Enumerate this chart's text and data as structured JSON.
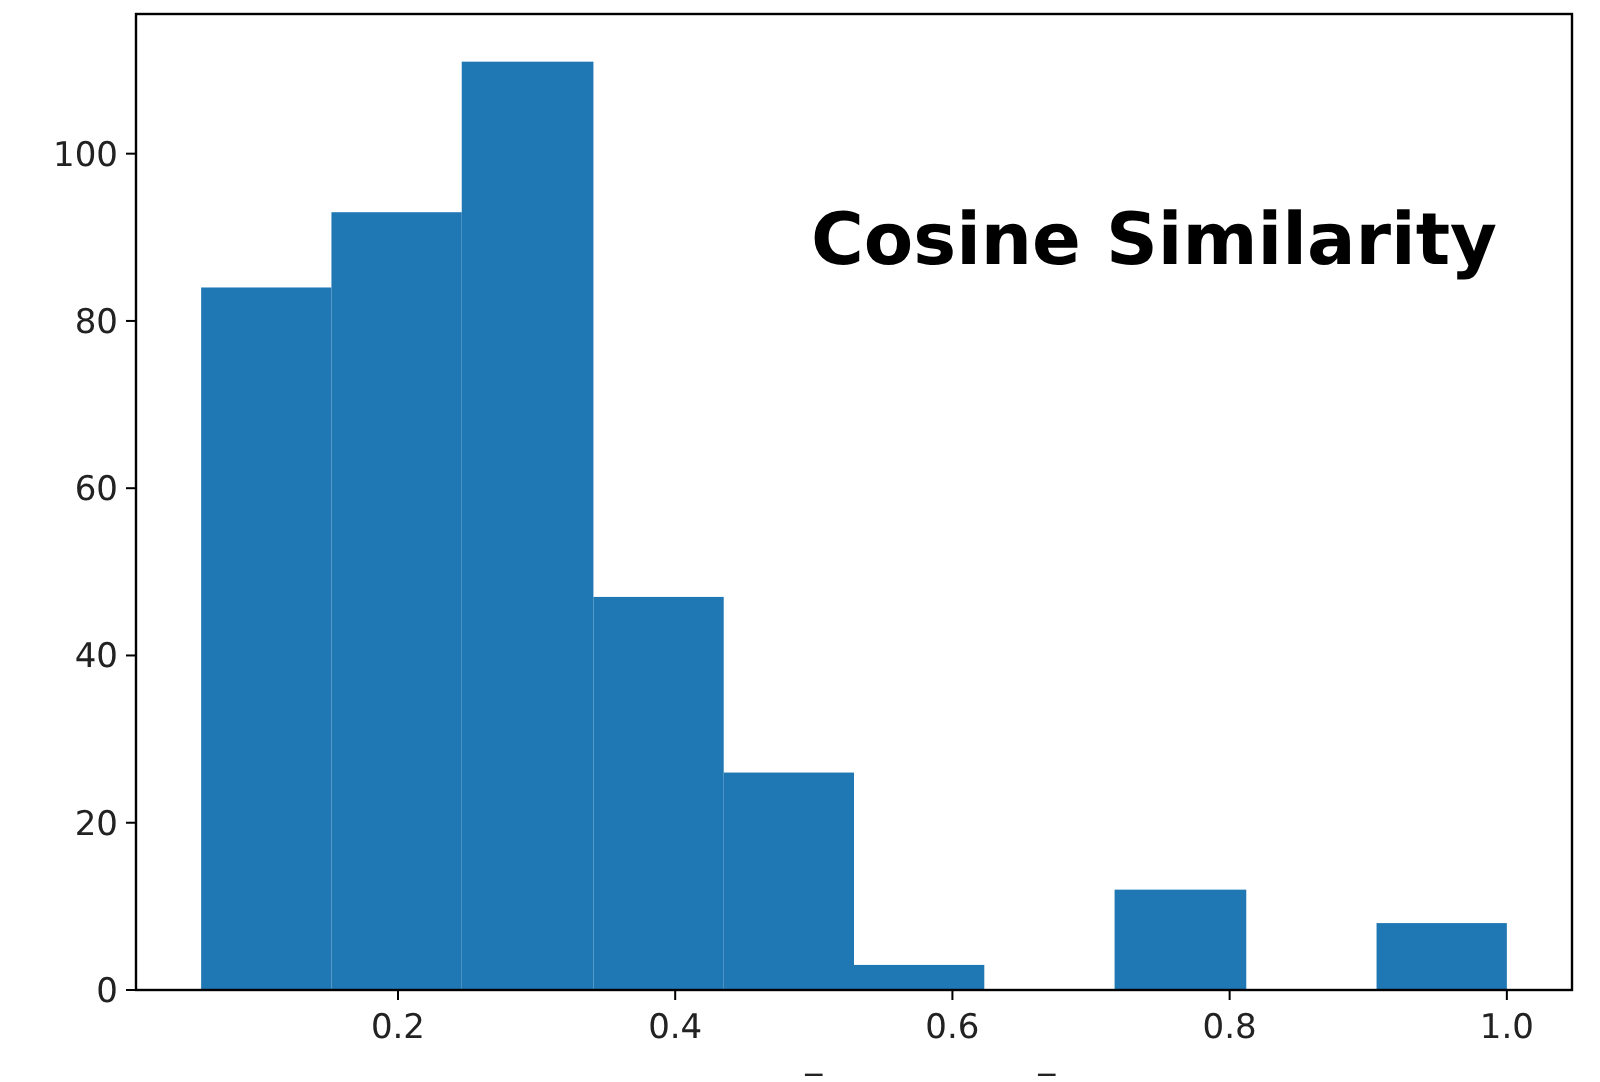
{
  "chart_data": {
    "type": "histogram",
    "title": "Cosine Similarity",
    "bins": [
      0.058,
      0.152,
      0.246,
      0.341,
      0.435,
      0.529,
      0.623,
      0.717,
      0.812,
      0.906,
      1.0
    ],
    "values": [
      84,
      93,
      111,
      47,
      26,
      3,
      0,
      12,
      0,
      8
    ],
    "color": "#1f77b4",
    "xlim": [
      0.011,
      1.047
    ],
    "ylim": [
      0,
      116.7
    ],
    "xticks": [
      {
        "value": 0.2,
        "label": "0.2"
      },
      {
        "value": 0.4,
        "label": "0.4"
      },
      {
        "value": 0.6,
        "label": "0.6"
      },
      {
        "value": 0.8,
        "label": "0.8"
      },
      {
        "value": 1.0,
        "label": "1.0"
      }
    ],
    "yticks": [
      0,
      20,
      40,
      60,
      80,
      100
    ],
    "grid": false,
    "annotations": [
      "_",
      "_"
    ]
  }
}
